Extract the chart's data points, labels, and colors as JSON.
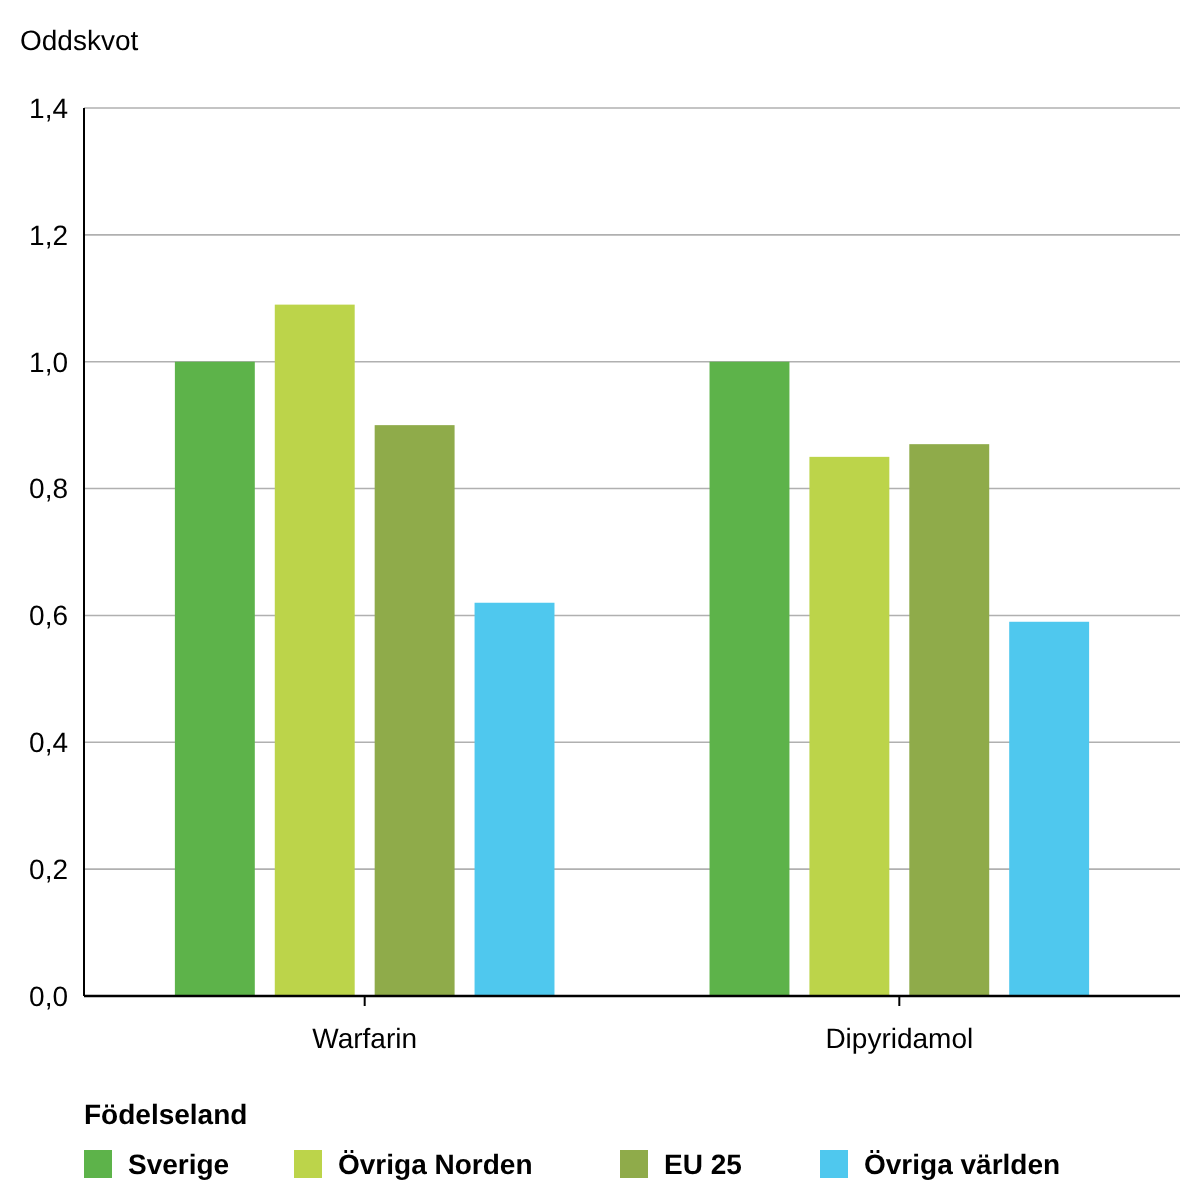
{
  "chart_data": {
    "type": "bar",
    "ylabel": "Oddskvot",
    "legend_title": "Födelseland",
    "categories": [
      "Warfarin",
      "Dipyridamol"
    ],
    "series": [
      {
        "name": "Sverige",
        "color": "#5db34a",
        "values": [
          1.0,
          1.0
        ]
      },
      {
        "name": "Övriga Norden",
        "color": "#bcd44a",
        "values": [
          1.09,
          0.85
        ]
      },
      {
        "name": "EU 25",
        "color": "#8fab4a",
        "values": [
          0.9,
          0.87
        ]
      },
      {
        "name": "Övriga världen",
        "color": "#4fc8ee",
        "values": [
          0.62,
          0.59
        ]
      }
    ],
    "ylim": [
      0,
      1.4
    ],
    "yticks": [
      {
        "value": 0,
        "label": "0,0"
      },
      {
        "value": 0.2,
        "label": "0,2"
      },
      {
        "value": 0.4,
        "label": "0,4"
      },
      {
        "value": 0.6,
        "label": "0,6"
      },
      {
        "value": 0.8,
        "label": "0,8"
      },
      {
        "value": 1,
        "label": "1,0"
      },
      {
        "value": 1.2,
        "label": "1,2"
      },
      {
        "value": 1.4,
        "label": "1,4"
      }
    ],
    "grid": "y",
    "legend": "bottom"
  }
}
